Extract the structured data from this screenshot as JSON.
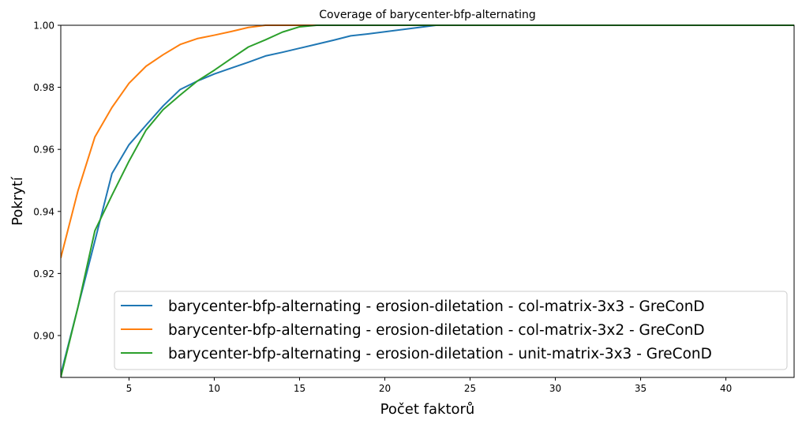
{
  "chart_data": {
    "type": "line",
    "title": "Coverage of barycenter-bfp-alternating",
    "xlabel": "Počet faktorů",
    "ylabel": "Pokrytí",
    "xlim": [
      1,
      44
    ],
    "ylim": [
      0.8865,
      1.0
    ],
    "xticks": [
      5,
      10,
      15,
      20,
      25,
      30,
      35,
      40
    ],
    "yticks": [
      0.9,
      0.92,
      0.94,
      0.96,
      0.98,
      1.0
    ],
    "ytick_labels": [
      "0.90",
      "0.92",
      "0.94",
      "0.96",
      "0.98",
      "1.00"
    ],
    "grid": false,
    "legend_position": "lower-right",
    "series": [
      {
        "name": "barycenter-bfp-alternating - erosion-diletation - col-matrix-3x3 - GreConD",
        "color": "#1f77b4",
        "x": [
          1,
          2,
          3,
          4,
          5,
          6,
          7,
          8,
          9,
          10,
          11,
          12,
          13,
          14,
          15,
          16,
          17,
          18,
          19,
          20,
          21,
          22,
          23,
          24,
          25,
          26,
          27,
          28,
          29,
          30,
          31,
          32,
          33,
          34,
          35,
          36,
          37,
          38,
          39,
          40,
          41,
          42,
          43,
          44
        ],
        "y": [
          0.8875,
          0.909,
          0.9305,
          0.9522,
          0.9615,
          0.9678,
          0.974,
          0.9793,
          0.982,
          0.9843,
          0.9862,
          0.9881,
          0.9901,
          0.9913,
          0.9926,
          0.9939,
          0.9952,
          0.9966,
          0.9972,
          0.9979,
          0.9986,
          0.9993,
          1.0,
          1.0,
          1.0,
          1.0,
          1.0,
          1.0,
          1.0,
          1.0,
          1.0,
          1.0,
          1.0,
          1.0,
          1.0,
          1.0,
          1.0,
          1.0,
          1.0,
          1.0,
          1.0,
          1.0,
          1.0,
          1.0
        ]
      },
      {
        "name": "barycenter-bfp-alternating - erosion-diletation - col-matrix-3x2 - GreConD",
        "color": "#ff7f0e",
        "x": [
          1,
          2,
          3,
          4,
          5,
          6,
          7,
          8,
          9,
          10,
          11,
          12,
          13,
          14,
          15,
          16,
          17,
          18,
          19,
          20,
          21,
          22,
          23,
          24,
          25,
          26,
          27,
          28,
          29,
          30,
          31,
          32,
          33,
          34,
          35,
          36,
          37,
          38,
          39,
          40,
          41,
          42,
          43,
          44
        ],
        "y": [
          0.925,
          0.9465,
          0.964,
          0.9735,
          0.9813,
          0.9868,
          0.9905,
          0.9938,
          0.9957,
          0.9968,
          0.998,
          0.9993,
          1.0,
          1.0,
          1.0,
          1.0,
          1.0,
          1.0,
          1.0,
          1.0,
          1.0,
          1.0,
          1.0,
          1.0,
          1.0,
          1.0,
          1.0,
          1.0,
          1.0,
          1.0,
          1.0,
          1.0,
          1.0,
          1.0,
          1.0,
          1.0,
          1.0,
          1.0,
          1.0,
          1.0,
          1.0,
          1.0,
          1.0,
          1.0
        ]
      },
      {
        "name": "barycenter-bfp-alternating - erosion-diletation - unit-matrix-3x3 - GreConD",
        "color": "#2ca02c",
        "x": [
          1,
          2,
          3,
          4,
          5,
          6,
          7,
          8,
          9,
          10,
          11,
          12,
          13,
          14,
          15,
          16,
          17,
          18,
          19,
          20,
          21,
          22,
          23,
          24,
          25,
          26,
          27,
          28,
          29,
          30,
          31,
          32,
          33,
          34,
          35,
          36,
          37,
          38,
          39,
          40,
          41,
          42,
          43,
          44
        ],
        "y": [
          0.8865,
          0.909,
          0.9338,
          0.9452,
          0.9562,
          0.9662,
          0.9728,
          0.9775,
          0.982,
          0.9855,
          0.9893,
          0.993,
          0.9953,
          0.9978,
          0.9995,
          1.0,
          1.0,
          1.0,
          1.0,
          1.0,
          1.0,
          1.0,
          1.0,
          1.0,
          1.0,
          1.0,
          1.0,
          1.0,
          1.0,
          1.0,
          1.0,
          1.0,
          1.0,
          1.0,
          1.0,
          1.0,
          1.0,
          1.0,
          1.0,
          1.0,
          1.0,
          1.0,
          1.0,
          1.0
        ]
      }
    ]
  }
}
